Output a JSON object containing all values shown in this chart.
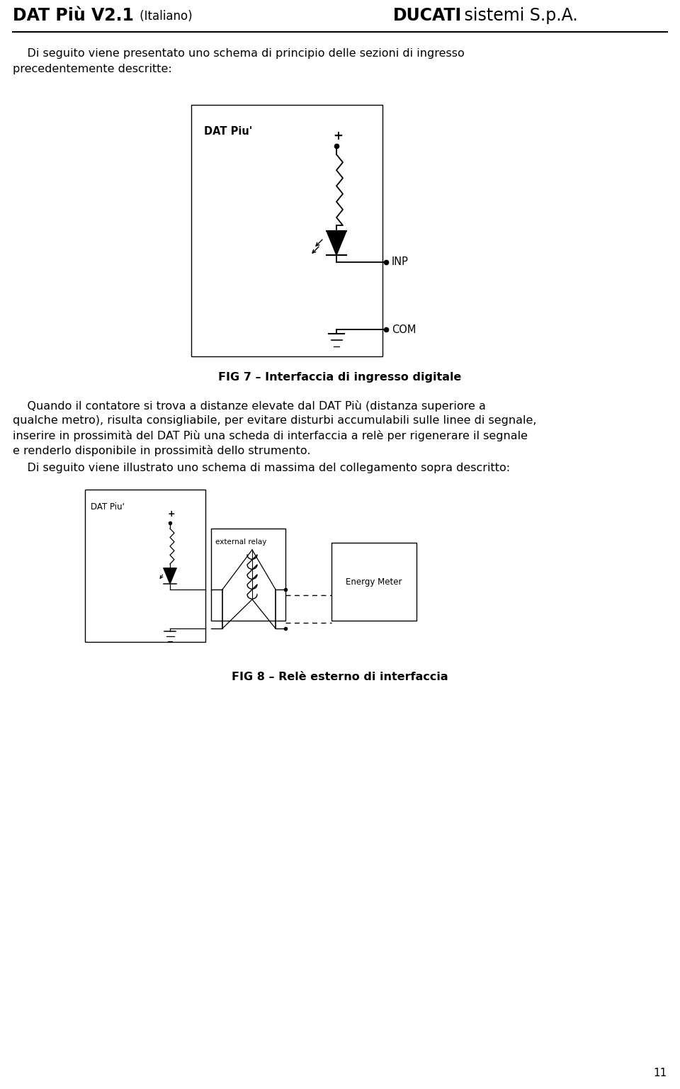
{
  "title_left_bold": "DAT Più V2.1",
  "title_left_normal": " (Italiano)",
  "title_right_bold": "DUCATI",
  "title_right_normal": " sistemi S.p.A.",
  "page_number": "11",
  "fig7_caption": "FIG 7 – Interfaccia di ingresso digitale",
  "fig8_caption": "FIG 8 – Relè esterno di interfaccia",
  "body1_line1": "    Di seguito viene presentato uno schema di principio delle sezioni di ingresso",
  "body1_line2": "precedentemente descritte:",
  "body2_line1": "    Quando il contatore si trova a distanze elevate dal DAT Più (distanza superiore a",
  "body2_line2": "qualche metro), risulta consigliabile, per evitare disturbi accumulabili sulle linee di segnale,",
  "body2_line3": "inserire in prossimità del DAT Più una scheda di interfaccia a relè per rigenerare il segnale",
  "body2_line4": "e renderlo disponibile in prossimità dello strumento.",
  "body3": "    Di seguito viene illustrato uno schema di massima del collegamento sopra descritto:",
  "bg_color": "#ffffff",
  "text_color": "#000000"
}
